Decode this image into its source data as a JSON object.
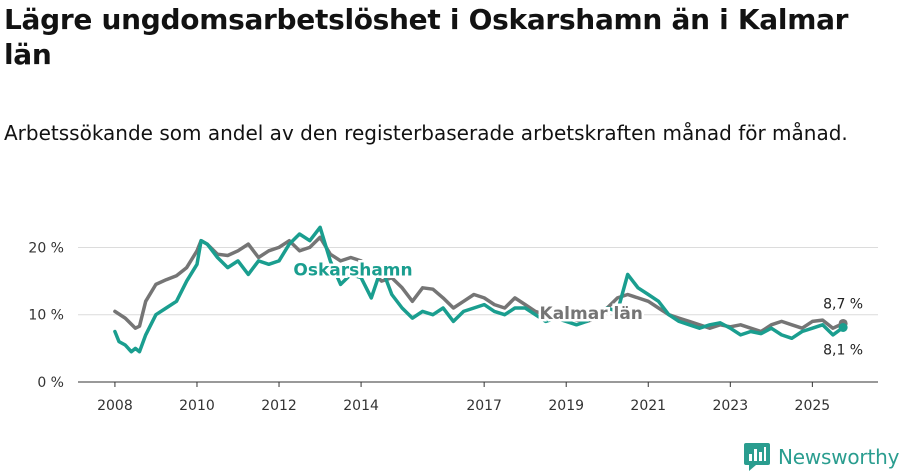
{
  "title": "Lägre ungdomsarbetslöshet i Oskarshamn än i Kalmar län",
  "subtitle": "Arbetssökande som andel av den registerbaserade arbetskraften månad för månad.",
  "brand": "Newsworthy",
  "chart_data": {
    "type": "line",
    "y_ticks": [
      "0 %",
      "10 %",
      "20 %"
    ],
    "y_tick_values": [
      0,
      10,
      20
    ],
    "ylim": [
      0,
      21.7
    ],
    "x_ticks": [
      "2008",
      "2010",
      "2012",
      "2014",
      "2017",
      "2019",
      "2021",
      "2023",
      "2025"
    ],
    "x_tick_values": [
      2008,
      2010,
      2012,
      2014,
      2017,
      2019,
      2021,
      2023,
      2025
    ],
    "xlim": [
      2007.1,
      2026.6
    ],
    "grid": true,
    "series": [
      {
        "name": "Kalmar län",
        "label": "Kalmar län",
        "color": "#757575",
        "end_label": "8,7 %",
        "x": [
          2008.0,
          2008.25,
          2008.5,
          2008.6,
          2008.75,
          2009.0,
          2009.25,
          2009.5,
          2009.75,
          2010.0,
          2010.1,
          2010.25,
          2010.5,
          2010.75,
          2011.0,
          2011.25,
          2011.5,
          2011.75,
          2012.0,
          2012.25,
          2012.5,
          2012.75,
          2013.0,
          2013.25,
          2013.5,
          2013.75,
          2014.0,
          2014.25,
          2014.5,
          2014.75,
          2015.0,
          2015.25,
          2015.5,
          2015.75,
          2016.0,
          2016.25,
          2016.5,
          2016.75,
          2017.0,
          2017.25,
          2017.5,
          2017.75,
          2018.0,
          2018.25,
          2018.5,
          2018.75,
          2019.0,
          2019.25,
          2019.5,
          2019.75,
          2020.0,
          2020.25,
          2020.5,
          2020.75,
          2021.0,
          2021.25,
          2021.5,
          2021.75,
          2022.0,
          2022.25,
          2022.5,
          2022.75,
          2023.0,
          2023.25,
          2023.5,
          2023.75,
          2024.0,
          2024.25,
          2024.5,
          2024.75,
          2025.0,
          2025.25,
          2025.5,
          2025.75
        ],
        "values": [
          10.5,
          9.5,
          8.0,
          8.3,
          12.0,
          14.5,
          15.2,
          15.8,
          17.0,
          19.5,
          21.0,
          20.5,
          19.0,
          18.8,
          19.5,
          20.5,
          18.5,
          19.5,
          20.0,
          21.0,
          19.5,
          20.0,
          21.5,
          19.0,
          18.0,
          18.5,
          18.0,
          16.5,
          15.0,
          15.5,
          14.0,
          12.0,
          14.0,
          13.8,
          12.5,
          11.0,
          12.0,
          13.0,
          12.5,
          11.5,
          11.0,
          12.5,
          11.5,
          10.5,
          10.0,
          9.8,
          9.5,
          9.2,
          9.0,
          9.5,
          11.0,
          12.5,
          13.0,
          12.5,
          12.0,
          11.0,
          10.0,
          9.5,
          9.0,
          8.5,
          8.0,
          8.5,
          8.2,
          8.5,
          8.0,
          7.5,
          8.5,
          9.0,
          8.5,
          8.0,
          9.0,
          9.2,
          8.0,
          8.7
        ]
      },
      {
        "name": "Oskarshamn",
        "label": "Oskarshamn",
        "color": "#1a9e8f",
        "end_label": "8,1 %",
        "x": [
          2008.0,
          2008.1,
          2008.25,
          2008.4,
          2008.5,
          2008.6,
          2008.75,
          2009.0,
          2009.25,
          2009.5,
          2009.75,
          2010.0,
          2010.1,
          2010.25,
          2010.5,
          2010.75,
          2011.0,
          2011.25,
          2011.5,
          2011.75,
          2012.0,
          2012.25,
          2012.5,
          2012.75,
          2013.0,
          2013.25,
          2013.5,
          2013.75,
          2014.0,
          2014.25,
          2014.5,
          2014.75,
          2015.0,
          2015.25,
          2015.5,
          2015.75,
          2016.0,
          2016.25,
          2016.5,
          2016.75,
          2017.0,
          2017.25,
          2017.5,
          2017.75,
          2018.0,
          2018.25,
          2018.5,
          2018.75,
          2019.0,
          2019.25,
          2019.5,
          2019.75,
          2020.0,
          2020.25,
          2020.5,
          2020.75,
          2021.0,
          2021.25,
          2021.5,
          2021.75,
          2022.0,
          2022.25,
          2022.5,
          2022.75,
          2023.0,
          2023.25,
          2023.5,
          2023.75,
          2024.0,
          2024.25,
          2024.5,
          2024.75,
          2025.0,
          2025.25,
          2025.5,
          2025.75
        ],
        "values": [
          7.5,
          6.0,
          5.5,
          4.5,
          5.0,
          4.5,
          7.0,
          10.0,
          11.0,
          12.0,
          15.0,
          17.5,
          21.0,
          20.5,
          18.5,
          17.0,
          18.0,
          16.0,
          18.0,
          17.5,
          18.0,
          20.5,
          22.0,
          21.0,
          23.0,
          18.0,
          14.5,
          16.0,
          15.5,
          12.5,
          17.0,
          13.0,
          11.0,
          9.5,
          10.5,
          10.0,
          11.0,
          9.0,
          10.5,
          11.0,
          11.5,
          10.5,
          10.0,
          11.0,
          11.0,
          10.0,
          9.0,
          9.5,
          9.0,
          8.5,
          9.0,
          10.0,
          11.0,
          10.5,
          16.0,
          14.0,
          13.0,
          12.0,
          10.0,
          9.0,
          8.5,
          8.0,
          8.5,
          8.8,
          8.0,
          7.0,
          7.5,
          7.2,
          8.0,
          7.0,
          6.5,
          7.5,
          8.0,
          8.5,
          7.0,
          8.1
        ]
      }
    ]
  }
}
